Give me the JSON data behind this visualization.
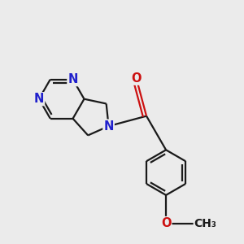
{
  "bg_color": "#ebebeb",
  "bond_color": "#1a1a1a",
  "N_color": "#2020cc",
  "O_color": "#cc1010",
  "bond_width": 1.6,
  "dbo": 0.055,
  "font_size": 10.5,
  "fig_size": [
    3.0,
    3.0
  ],
  "dpi": 100,
  "xlim": [
    0.0,
    4.2
  ],
  "ylim": [
    0.3,
    4.0
  ]
}
